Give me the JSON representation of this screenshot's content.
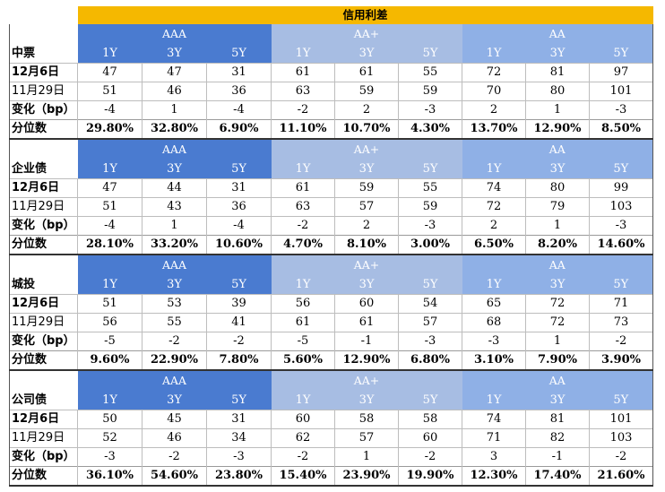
{
  "title": "信用利差",
  "ratings": [
    "AAA",
    "AA+",
    "AA"
  ],
  "tenors": [
    "1Y",
    "3Y",
    "5Y"
  ],
  "sections": [
    {
      "name": "中票",
      "rows": [
        {
          "label": "12月6日",
          "values": [
            "47",
            "47",
            "31",
            "61",
            "61",
            "55",
            "72",
            "81",
            "97"
          ]
        },
        {
          "label": "11月29日",
          "values": [
            "51",
            "46",
            "36",
            "63",
            "59",
            "59",
            "70",
            "80",
            "101"
          ]
        },
        {
          "label": "变化（bp）",
          "values": [
            "-4",
            "1",
            "-4",
            "-2",
            "2",
            "-3",
            "2",
            "1",
            "-3"
          ]
        },
        {
          "label": "分位数",
          "values": [
            "29.80%",
            "32.80%",
            "6.90%",
            "11.10%",
            "10.70%",
            "4.30%",
            "13.70%",
            "12.90%",
            "8.50%"
          ]
        }
      ]
    },
    {
      "name": "企业债",
      "rows": [
        {
          "label": "12月6日",
          "values": [
            "47",
            "44",
            "31",
            "61",
            "59",
            "55",
            "74",
            "80",
            "99"
          ]
        },
        {
          "label": "11月29日",
          "values": [
            "51",
            "43",
            "36",
            "63",
            "57",
            "59",
            "72",
            "79",
            "103"
          ]
        },
        {
          "label": "变化（bp）",
          "values": [
            "-4",
            "1",
            "-4",
            "-2",
            "2",
            "-3",
            "2",
            "1",
            "-3"
          ]
        },
        {
          "label": "分位数",
          "values": [
            "28.10%",
            "33.20%",
            "10.60%",
            "4.70%",
            "8.10%",
            "3.00%",
            "6.50%",
            "8.20%",
            "14.60%"
          ]
        }
      ]
    },
    {
      "name": "城投",
      "rows": [
        {
          "label": "12月6日",
          "values": [
            "51",
            "53",
            "39",
            "56",
            "60",
            "54",
            "65",
            "72",
            "71"
          ]
        },
        {
          "label": "11月29日",
          "values": [
            "56",
            "55",
            "41",
            "61",
            "61",
            "57",
            "68",
            "72",
            "73"
          ]
        },
        {
          "label": "变化（bp）",
          "values": [
            "-5",
            "-2",
            "-2",
            "-5",
            "-1",
            "-3",
            "-3",
            "1",
            "-2"
          ]
        },
        {
          "label": "分位数",
          "values": [
            "9.60%",
            "22.90%",
            "7.80%",
            "5.60%",
            "12.90%",
            "6.80%",
            "3.10%",
            "7.90%",
            "3.90%"
          ]
        }
      ]
    },
    {
      "name": "公司债",
      "rows": [
        {
          "label": "12月6日",
          "values": [
            "50",
            "45",
            "31",
            "60",
            "58",
            "58",
            "74",
            "81",
            "101"
          ]
        },
        {
          "label": "11月29日",
          "values": [
            "52",
            "46",
            "34",
            "62",
            "57",
            "60",
            "71",
            "82",
            "103"
          ]
        },
        {
          "label": "变化（bp）",
          "values": [
            "-3",
            "-2",
            "-3",
            "-2",
            "1",
            "-2",
            "3",
            "-1",
            "-2"
          ]
        },
        {
          "label": "分位数",
          "values": [
            "36.10%",
            "54.60%",
            "23.80%",
            "15.40%",
            "23.90%",
            "19.90%",
            "12.30%",
            "17.40%",
            "21.60%"
          ]
        }
      ]
    }
  ]
}
